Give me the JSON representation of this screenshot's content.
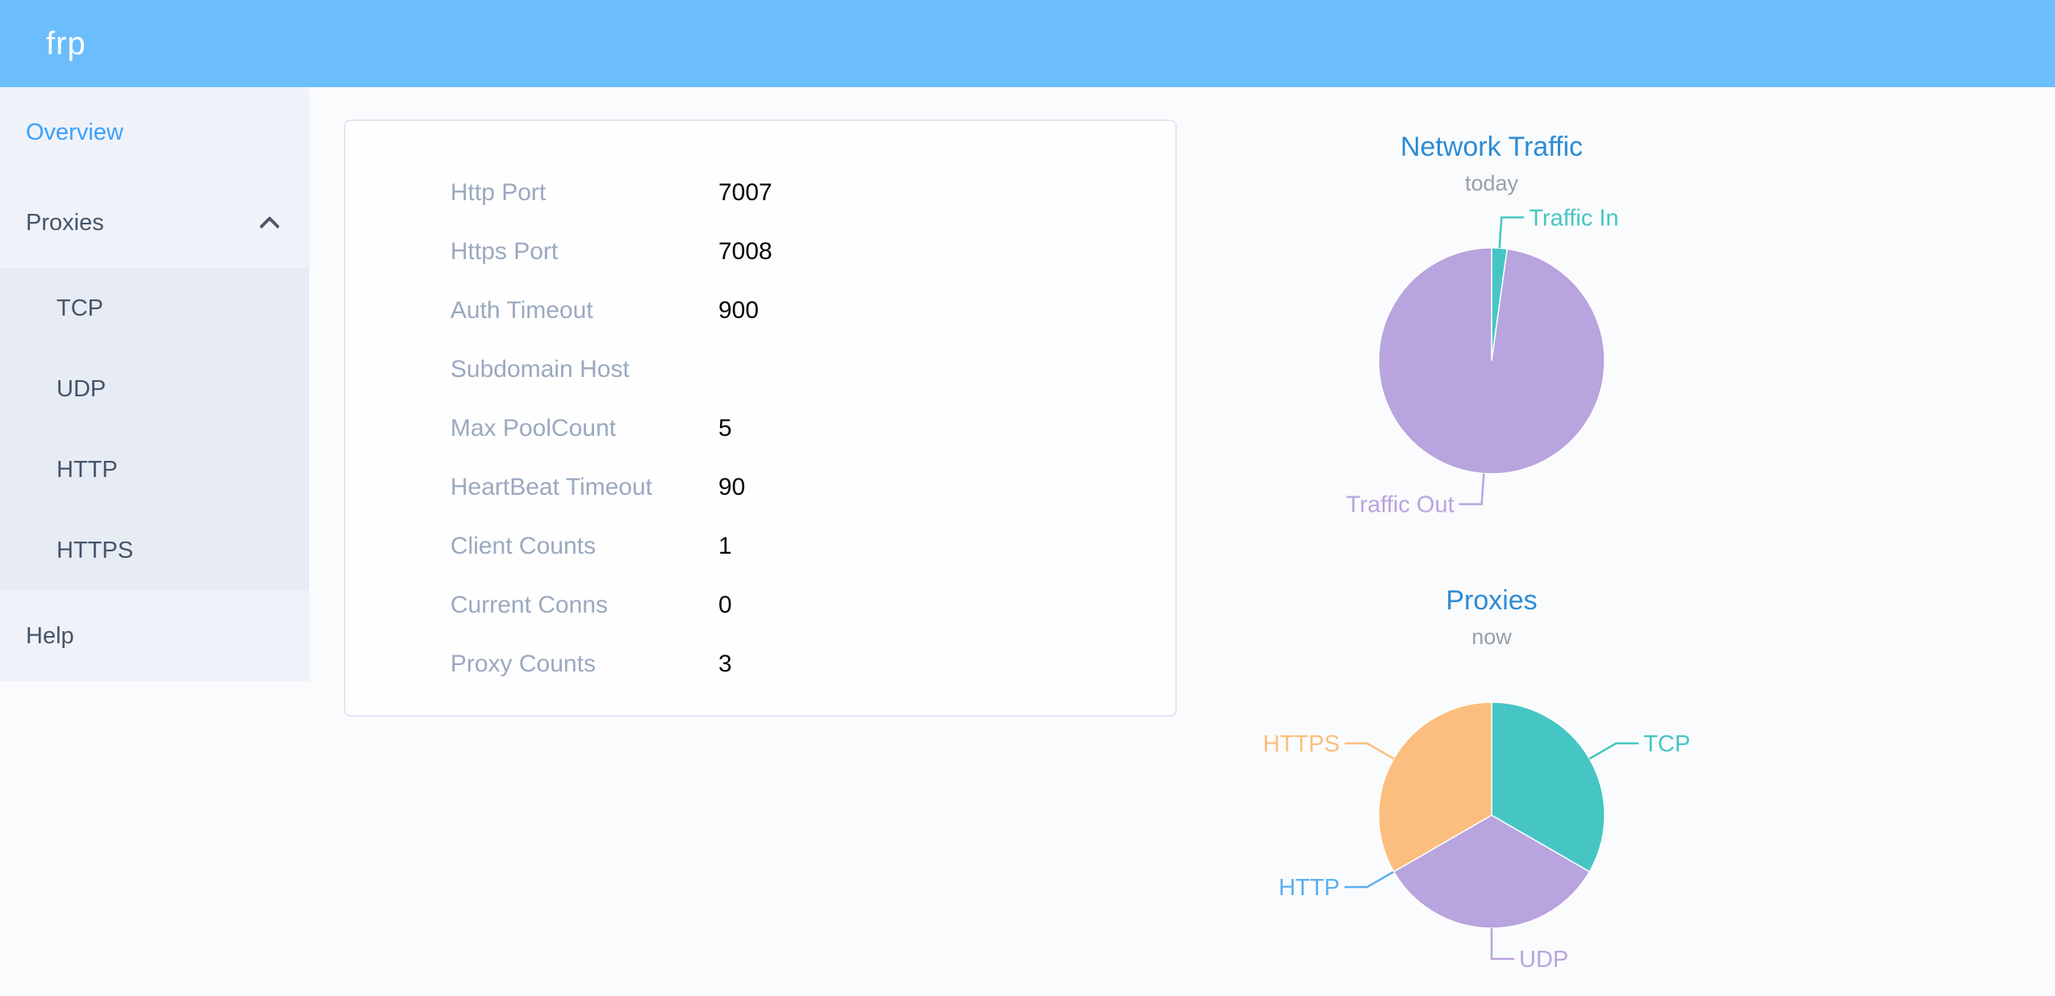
{
  "header": {
    "logo_text": "frp"
  },
  "sidebar": {
    "items": [
      {
        "label": "Overview",
        "active": true
      },
      {
        "label": "Proxies",
        "expanded": true,
        "children": [
          "TCP",
          "UDP",
          "HTTP",
          "HTTPS"
        ]
      },
      {
        "label": "Help"
      }
    ]
  },
  "overview_card": {
    "rows": [
      {
        "label": "Http Port",
        "value": "7007"
      },
      {
        "label": "Https Port",
        "value": "7008"
      },
      {
        "label": "Auth Timeout",
        "value": "900"
      },
      {
        "label": "Subdomain Host",
        "value": ""
      },
      {
        "label": "Max PoolCount",
        "value": "5"
      },
      {
        "label": "HeartBeat Timeout",
        "value": "90"
      },
      {
        "label": "Client Counts",
        "value": "1"
      },
      {
        "label": "Current Conns",
        "value": "0"
      },
      {
        "label": "Proxy Counts",
        "value": "3"
      }
    ]
  },
  "chart_data": [
    {
      "type": "pie",
      "title": "Network Traffic",
      "subtitle": "today",
      "legend_position": "none",
      "value_unit": "percent-estimated-from-arc",
      "slices": [
        {
          "name": "Traffic In",
          "value": 2.2,
          "color": "#45c6c5"
        },
        {
          "name": "Traffic Out",
          "value": 97.8,
          "color": "#b8a4de"
        }
      ]
    },
    {
      "type": "pie",
      "title": "Proxies",
      "subtitle": "now",
      "legend_position": "none",
      "value_unit": "proxy-count",
      "slices": [
        {
          "name": "TCP",
          "value": 1,
          "color": "#45c6c5"
        },
        {
          "name": "UDP",
          "value": 1,
          "color": "#b8a4de"
        },
        {
          "name": "HTTP",
          "value": 0,
          "color": "#5aaff0"
        },
        {
          "name": "HTTPS",
          "value": 1,
          "color": "#fbbe7f"
        }
      ]
    }
  ],
  "colors": {
    "header_bg": "#6cbdfc",
    "sidebar_bg": "#eff2f8",
    "submenu_bg": "#e7ebf3",
    "active_item": "#3aa0ff",
    "chart_title": "#2d8cd6",
    "card_label": "#9aa9c0"
  }
}
